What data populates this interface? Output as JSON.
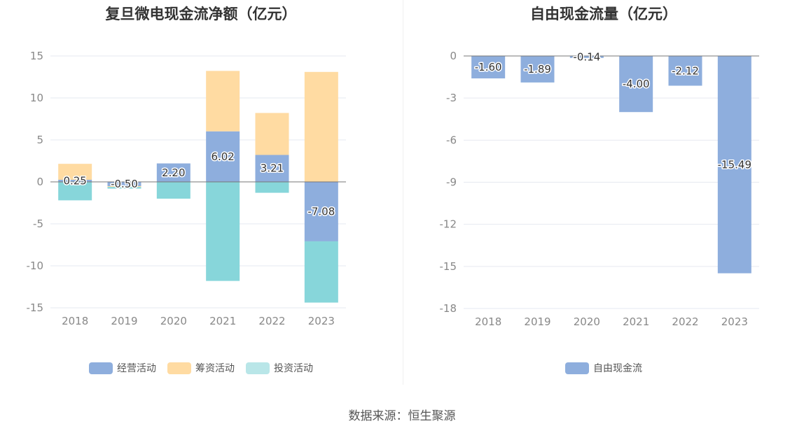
{
  "source_text": "数据来源：恒生聚源",
  "chart_data": [
    {
      "type": "bar",
      "stacked": true,
      "title": "复旦微电现金流净额（亿元）",
      "categories": [
        "2018",
        "2019",
        "2020",
        "2021",
        "2022",
        "2023"
      ],
      "ylim": [
        -15,
        15
      ],
      "yticks": [
        "15",
        "10",
        "5",
        "0",
        "-5",
        "-10",
        "-15"
      ],
      "grid": true,
      "legend_position": "bottom",
      "series": [
        {
          "name": "经营活动",
          "color": "#8eaedd",
          "values": [
            0.25,
            -0.5,
            2.2,
            6.02,
            3.21,
            -7.08
          ],
          "labels": [
            "0.25",
            "-0.50",
            "2.20",
            "6.02",
            "3.21",
            "-7.08"
          ]
        },
        {
          "name": "筹资活动",
          "color": "#ffdba2",
          "values": [
            1.9,
            -0.1,
            0,
            7.2,
            5.0,
            13.1
          ]
        },
        {
          "name": "投资活动",
          "color": "#87d6da",
          "values": [
            -2.2,
            -0.2,
            -2.0,
            -11.8,
            -1.3,
            -7.3
          ]
        }
      ]
    },
    {
      "type": "bar",
      "title": "自由现金流量（亿元）",
      "categories": [
        "2018",
        "2019",
        "2020",
        "2021",
        "2022",
        "2023"
      ],
      "ylim": [
        -18,
        0
      ],
      "yticks": [
        "0",
        "-3",
        "-6",
        "-9",
        "-12",
        "-15",
        "-18"
      ],
      "grid": true,
      "legend_position": "bottom",
      "series": [
        {
          "name": "自由现金流",
          "color": "#8eaedd",
          "values": [
            -1.6,
            -1.89,
            -0.14,
            -4.0,
            -2.12,
            -15.49
          ],
          "labels": [
            "-1.60",
            "-1.89",
            "-0.14",
            "-4.00",
            "-2.12",
            "-15.49"
          ]
        }
      ]
    }
  ]
}
